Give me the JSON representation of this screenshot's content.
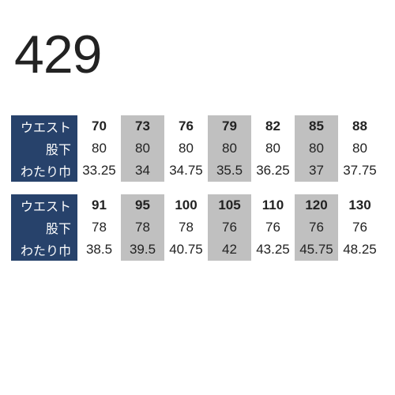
{
  "title": "429",
  "labels": [
    "ウエスト",
    "股下",
    "わたり巾"
  ],
  "label_bg": "#27426b",
  "label_color": "#ffffff",
  "shaded_bg": "#c0c0c0",
  "plain_bg": "#ffffff",
  "text_color": "#222222",
  "header_bold": true,
  "tables": [
    {
      "shaded_cols": [
        1,
        3,
        5
      ],
      "rows": [
        [
          "70",
          "73",
          "76",
          "79",
          "82",
          "85",
          "88"
        ],
        [
          "80",
          "80",
          "80",
          "80",
          "80",
          "80",
          "80"
        ],
        [
          "33.25",
          "34",
          "34.75",
          "35.5",
          "36.25",
          "37",
          "37.75"
        ]
      ]
    },
    {
      "shaded_cols": [
        1,
        3,
        5
      ],
      "rows": [
        [
          "91",
          "95",
          "100",
          "105",
          "110",
          "120",
          "130"
        ],
        [
          "78",
          "78",
          "78",
          "76",
          "76",
          "76",
          "76"
        ],
        [
          "38.5",
          "39.5",
          "40.75",
          "42",
          "43.25",
          "45.75",
          "48.25"
        ]
      ]
    }
  ]
}
